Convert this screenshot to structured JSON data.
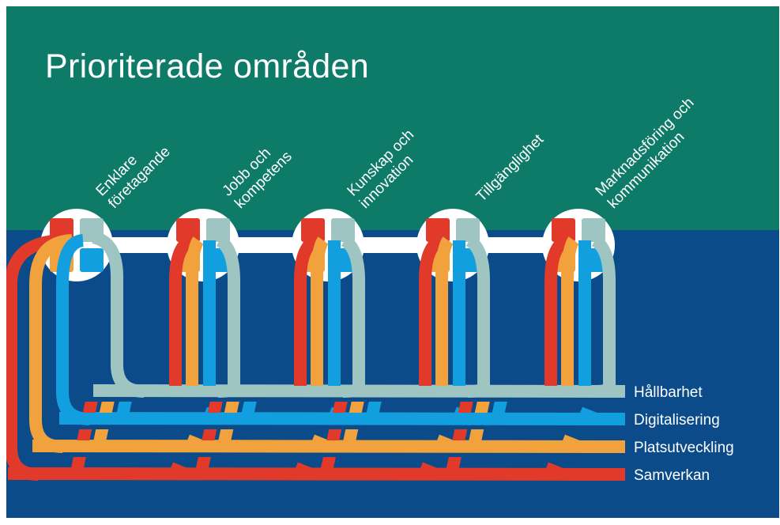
{
  "title": "Prioriterade områden",
  "colors": {
    "top_background": "#0e7a68",
    "bottom_background": "#0b4b8a",
    "connector": "#ffffff",
    "samverkan": "#e23a2a",
    "platsutveckling": "#f2a23c",
    "digitalisering": "#129fe0",
    "hallbarhet": "#9ec5c2"
  },
  "areas": [
    {
      "line1": "Enklare",
      "line2": "företagande"
    },
    {
      "line1": "Jobb och",
      "line2": "kompetens"
    },
    {
      "line1": "Kunskap och",
      "line2": "innovation"
    },
    {
      "line1": "Tillgänglighet",
      "line2": ""
    },
    {
      "line1": "Marknadsföring och",
      "line2": "kommunikation"
    }
  ],
  "themes": [
    {
      "key": "hallbarhet",
      "label": "Hållbarhet"
    },
    {
      "key": "digitalisering",
      "label": "Digitalisering"
    },
    {
      "key": "platsutveckling",
      "label": "Platsutveckling"
    },
    {
      "key": "samverkan",
      "label": "Samverkan"
    }
  ]
}
